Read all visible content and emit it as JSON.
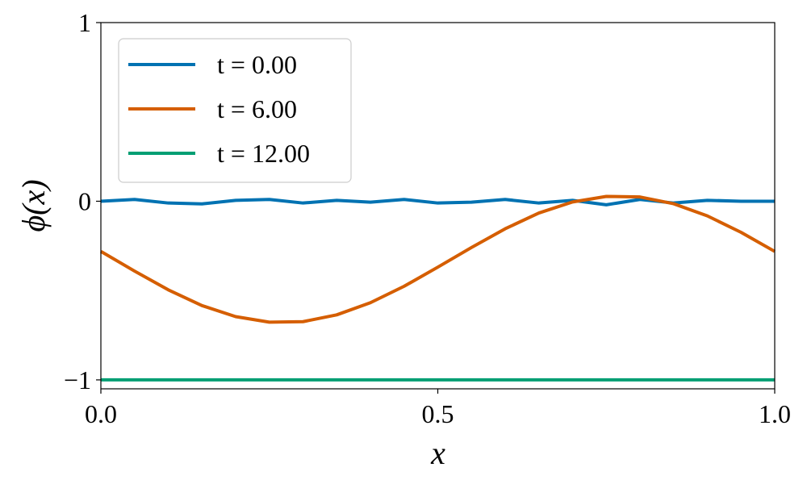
{
  "chart_data": {
    "type": "line",
    "xlabel": "x",
    "ylabel": "ϕ(x)",
    "x": [
      0,
      0.05,
      0.1,
      0.15,
      0.2,
      0.25,
      0.3,
      0.35,
      0.4,
      0.45,
      0.5,
      0.55,
      0.6,
      0.65,
      0.7,
      0.75,
      0.8,
      0.85,
      0.9,
      0.95,
      1.0
    ],
    "series": [
      {
        "name": "t = 0.00",
        "color": "#0072b2",
        "values": [
          0.0,
          0.01,
          -0.01,
          -0.015,
          0.005,
          0.01,
          -0.01,
          0.005,
          -0.005,
          0.01,
          -0.01,
          -0.005,
          0.01,
          -0.01,
          0.005,
          -0.02,
          0.01,
          -0.01,
          0.005,
          0.0,
          0.0
        ]
      },
      {
        "name": "t = 6.00",
        "color": "#d55e00",
        "values": [
          -0.281,
          -0.391,
          -0.496,
          -0.584,
          -0.646,
          -0.677,
          -0.674,
          -0.636,
          -0.568,
          -0.476,
          -0.369,
          -0.259,
          -0.154,
          -0.066,
          -0.004,
          0.027,
          0.024,
          -0.014,
          -0.082,
          -0.174,
          -0.281
        ]
      },
      {
        "name": "t = 12.00",
        "color": "#009e73",
        "values": [
          -1,
          -1,
          -1,
          -1,
          -1,
          -1,
          -1,
          -1,
          -1,
          -1,
          -1,
          -1,
          -1,
          -1,
          -1,
          -1,
          -1,
          -1,
          -1,
          -1,
          -1
        ]
      }
    ],
    "xlim": [
      0,
      1
    ],
    "ylim": [
      -1.05,
      1
    ],
    "xticks": [
      {
        "value": 0,
        "label": "0.0"
      },
      {
        "value": 0.5,
        "label": "0.5"
      },
      {
        "value": 1,
        "label": "1.0"
      }
    ],
    "yticks": [
      {
        "value": -1,
        "label": "−1"
      },
      0,
      1
    ],
    "legend": "upper-left"
  }
}
